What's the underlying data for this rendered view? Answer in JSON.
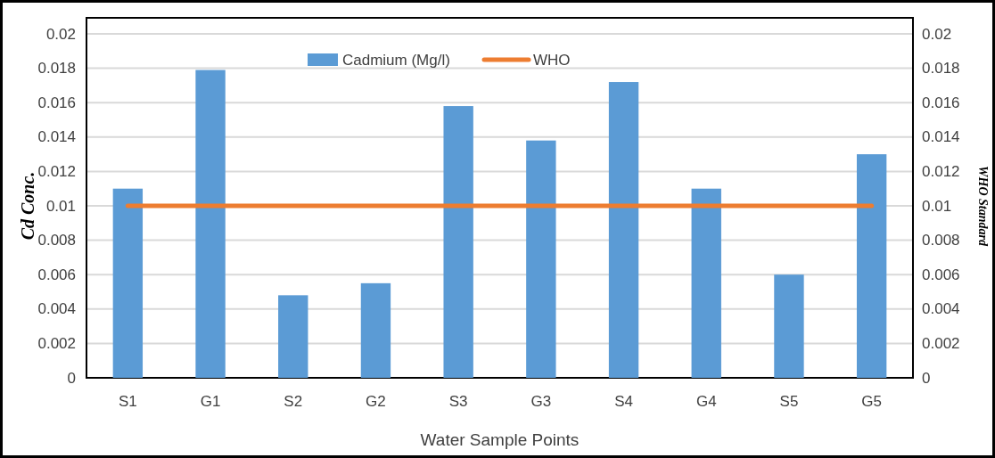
{
  "chart_data": {
    "type": "bar",
    "xlabel": "Water Sample Points",
    "ylabel": "Cd Conc.",
    "y2label": "WHO Standard",
    "categories": [
      "S1",
      "G1",
      "S2",
      "G2",
      "S3",
      "G3",
      "S4",
      "G4",
      "S5",
      "G5"
    ],
    "series": [
      {
        "name": "Cadmium (Mg/l)",
        "color": "#5b9bd5",
        "values": [
          0.011,
          0.0179,
          0.0048,
          0.0055,
          0.0158,
          0.0138,
          0.0172,
          0.011,
          0.006,
          0.013
        ]
      },
      {
        "name": "WHO",
        "type": "line",
        "axis": "y2",
        "color": "#ed7d31",
        "values": [
          0.01,
          0.01,
          0.01,
          0.01,
          0.01,
          0.01,
          0.01,
          0.01,
          0.01,
          0.01
        ]
      }
    ],
    "ylim": [
      0,
      0.02
    ],
    "yticks": [
      0,
      0.002,
      0.004,
      0.006,
      0.008,
      0.01,
      0.012,
      0.014,
      0.016,
      0.018,
      0.02
    ],
    "y2lim": [
      0,
      0.02
    ],
    "y2ticks": [
      0,
      0.002,
      0.004,
      0.006,
      0.008,
      0.01,
      0.012,
      0.014,
      0.016,
      0.018,
      0.02
    ],
    "grid": "y",
    "legend": "top"
  }
}
